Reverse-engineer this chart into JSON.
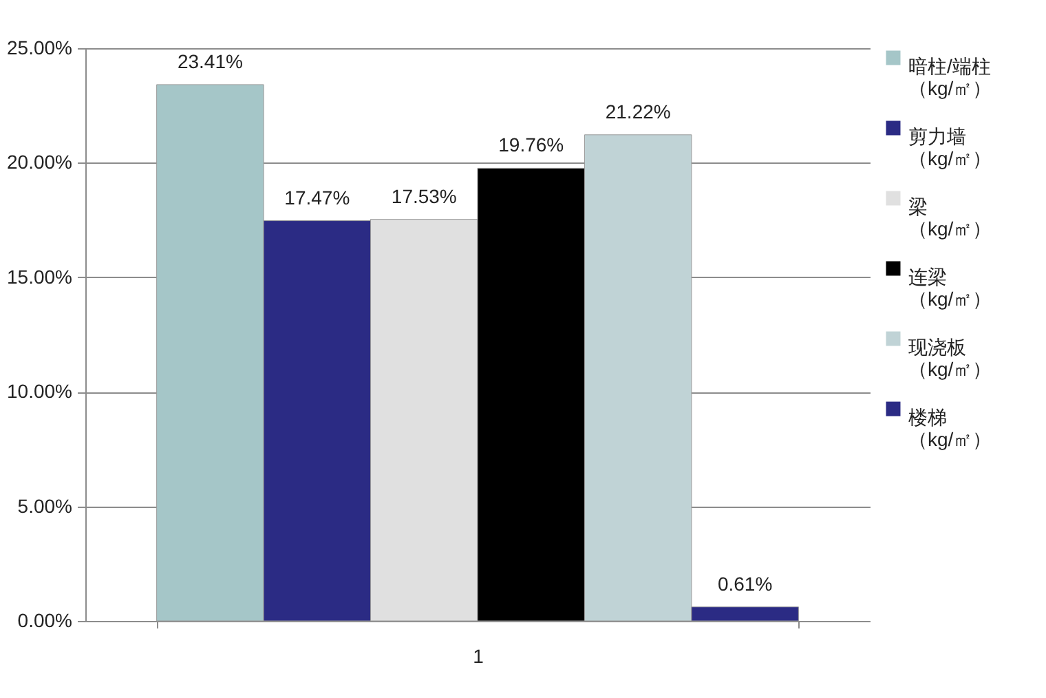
{
  "chart_data": {
    "type": "bar",
    "categories": [
      "1"
    ],
    "series": [
      {
        "name": "暗柱/端柱（kg/㎡）",
        "color": "#a5c6c8",
        "values": [
          23.41
        ],
        "value_labels": [
          "23.41%"
        ]
      },
      {
        "name": "剪力墙（kg/㎡）",
        "color": "#2b2b84",
        "values": [
          17.47
        ],
        "value_labels": [
          "17.47%"
        ]
      },
      {
        "name": "梁（kg/㎡）",
        "color": "#e0e0e0",
        "values": [
          17.53
        ],
        "value_labels": [
          "17.53%"
        ]
      },
      {
        "name": "连梁（kg/㎡）",
        "color": "#000000",
        "values": [
          19.76
        ],
        "value_labels": [
          "19.76%"
        ]
      },
      {
        "name": "现浇板（kg/㎡）",
        "color": "#c0d3d6",
        "values": [
          21.22
        ],
        "value_labels": [
          "21.22%"
        ]
      },
      {
        "name": "楼梯（kg/㎡）",
        "color": "#2b2b84",
        "values": [
          0.61
        ],
        "value_labels": [
          "0.61%"
        ]
      }
    ],
    "ylim": [
      0,
      25
    ],
    "yticks": [
      {
        "value": 0,
        "label": "0.00%"
      },
      {
        "value": 5,
        "label": "5.00%"
      },
      {
        "value": 10,
        "label": "10.00%"
      },
      {
        "value": 15,
        "label": "15.00%"
      },
      {
        "value": 20,
        "label": "20.00%"
      },
      {
        "value": 25,
        "label": "25.00%"
      }
    ],
    "grid": "y",
    "legend": "right"
  }
}
